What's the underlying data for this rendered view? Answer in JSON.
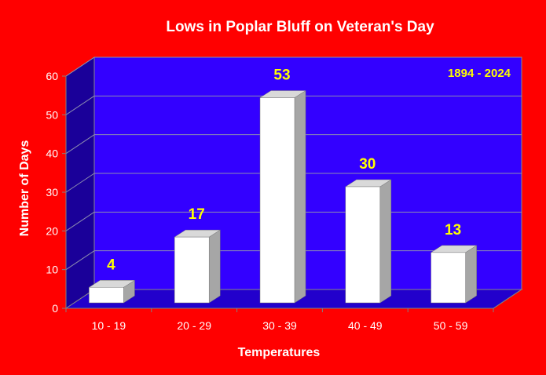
{
  "chart_data": {
    "type": "bar",
    "title": "Lows in Poplar Bluff on Veteran's Day",
    "annotation": "1894 - 2024",
    "xlabel": "Temperatures",
    "ylabel": "Number of Days",
    "categories": [
      "10 - 19",
      "20 - 29",
      "30 - 39",
      "40 - 49",
      "50 - 59"
    ],
    "values": [
      4,
      17,
      53,
      30,
      13
    ],
    "data_labels": [
      "4",
      "17",
      "53",
      "30",
      "13"
    ],
    "ylim": [
      0,
      60
    ],
    "yticks": [
      "0",
      "10",
      "20",
      "30",
      "40",
      "50",
      "60"
    ],
    "grid": true,
    "legend": "none",
    "colors": {
      "background": "#ff0000",
      "plot_back_wall": "#3300ff",
      "plot_side_wall": "#1a0099",
      "plot_floor": "#2200cc",
      "bar_front": "#ffffff",
      "bar_side": "#a6a6a6",
      "bar_top": "#d9d9d9",
      "data_label": "#ffff00",
      "annotation": "#ffff00",
      "text": "#ffffff"
    }
  }
}
